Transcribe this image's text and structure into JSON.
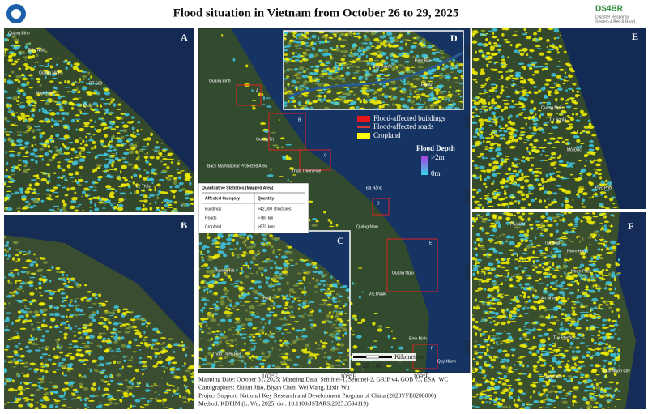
{
  "header": {
    "title": "Flood situation in Vietnam from October 26 to 29, 2025",
    "logo_text": "DS4BR",
    "logo_subtitle_1": "Disaster Response",
    "logo_subtitle_2": "System 4 Belt & Road"
  },
  "panels": {
    "A": {
      "label": "A",
      "places": [
        "Quảng Bình",
        "Đức Ninh",
        "Quảng Ninh",
        "Hàm Ninh",
        "Lệ Thủy",
        "QL1",
        "ĐT 568"
      ]
    },
    "B": {
      "label": "B"
    },
    "C": {
      "label": "C",
      "places": [
        "Hương Trà",
        "Huế",
        "Thừa Thiên Huế"
      ]
    },
    "D": {
      "label": "D",
      "places": [
        "Điện Bàn",
        "Hội An",
        "Duy Xuyên"
      ]
    },
    "E": {
      "label": "E",
      "places": [
        "Quảng Ngãi",
        "Tư Nghĩa",
        "Mộ Đức",
        "Đức Phổ"
      ]
    },
    "F": {
      "label": "F",
      "places": [
        "Phù Cát",
        "Tây Sơn",
        "Nhơn Hạnh",
        "Nhơn Phúc",
        "An Nhơn",
        "Tuy Phước",
        "Quy Nhơn City",
        "Vân Canh"
      ]
    }
  },
  "main_map": {
    "places": [
      "Quảng Bình",
      "Quảng Trị",
      "Thừa Thiên Huế",
      "Đà Nẵng",
      "Quảng Nam",
      "Quảng Ngãi",
      "VIETNAM",
      "Bình Định",
      "Quy Nhơn",
      "Bach Ma National Protected Area"
    ],
    "box_labels": [
      "A",
      "B",
      "C",
      "D",
      "E",
      "F"
    ],
    "lon_labels": [
      "107°E",
      "108°E",
      "109°E"
    ],
    "lat_labels": [
      "18°N",
      "17°N",
      "16°N",
      "15°N",
      "14°N"
    ]
  },
  "legend": {
    "items": [
      "Flood-affected buildings",
      "Flood-affected roads",
      "Cropland"
    ],
    "depth_title": "Flood Depth",
    "depth_max": ">2m",
    "depth_min": "0m"
  },
  "statistics": {
    "title": "Quantitative Statistics (Mapped Area)",
    "headers": [
      "Affected Category",
      "Quantity"
    ],
    "rows": [
      [
        "Buildings",
        ">42,000 structures"
      ],
      [
        "Roads",
        ">780 km"
      ],
      [
        "Cropland",
        ">870 km²"
      ]
    ]
  },
  "scale_bar": {
    "unit": "Kilometers",
    "ticks": [
      "0",
      "20",
      "40"
    ]
  },
  "footer": {
    "lines": [
      "Mapping Date: October 31, 2025; Mapping Data: Sentinel-1, Sentinel-2, GRIP v4, GOB v3, ESA_WC",
      "Cartographers: Zhijun Jiao, Biyan Chen, Wei Wang, Lixin Wu",
      "Project Support: National Key Research and Development Program of China (2023YFE0208000)",
      "Method: KDFIM (L. Wu, 2025, doi: 10.1109/JSTARS.2025.3594119)"
    ]
  }
}
